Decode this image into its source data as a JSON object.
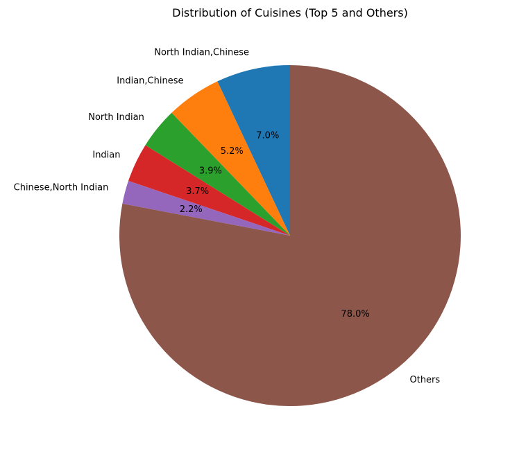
{
  "chart_data": {
    "type": "pie",
    "title": "Distribution of Cuisines (Top 5 and Others)",
    "start_angle_deg": 90,
    "direction": "counterclockwise",
    "slices": [
      {
        "label": "North Indian,Chinese",
        "value": 7.0,
        "pct_label": "7.0%",
        "color": "#1f77b4"
      },
      {
        "label": "Indian,Chinese",
        "value": 5.2,
        "pct_label": "5.2%",
        "color": "#ff7f0e"
      },
      {
        "label": "North Indian",
        "value": 3.9,
        "pct_label": "3.9%",
        "color": "#2ca02c"
      },
      {
        "label": "Indian",
        "value": 3.7,
        "pct_label": "3.7%",
        "color": "#d62728"
      },
      {
        "label": "Chinese,North Indian",
        "value": 2.2,
        "pct_label": "2.2%",
        "color": "#9467bd"
      },
      {
        "label": "Others",
        "value": 78.0,
        "pct_label": "78.0%",
        "color": "#8c564b"
      }
    ]
  }
}
